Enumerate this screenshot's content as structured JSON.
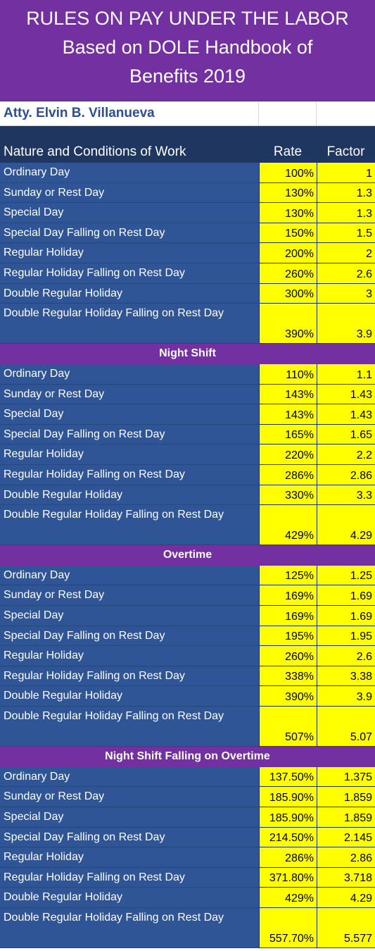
{
  "title": {
    "line1": "RULES ON PAY UNDER THE LABOR",
    "line2": "Based on DOLE Handbook of",
    "line3": "Benefits 2019"
  },
  "author": "Atty. Elvin B. Villanueva",
  "headers": {
    "nature": "Nature and Conditions of Work",
    "rate": "Rate",
    "factor": "Factor"
  },
  "colors": {
    "title_bg": "#7230a0",
    "name_bg": "#2f5596",
    "value_bg": "#ffff00",
    "header_bg": "#1f3660"
  },
  "sections": [
    {
      "heading": "",
      "rows": [
        {
          "name": "Ordinary Day",
          "rate": "100%",
          "factor": "1"
        },
        {
          "name": "Sunday or Rest Day",
          "rate": "130%",
          "factor": "1.3"
        },
        {
          "name": "Special Day",
          "rate": "130%",
          "factor": "1.3"
        },
        {
          "name": "Special Day Falling on Rest Day",
          "rate": "150%",
          "factor": "1.5"
        },
        {
          "name": "Regular Holiday",
          "rate": "200%",
          "factor": "2"
        },
        {
          "name": "Regular Holiday Falling on Rest Day",
          "rate": "260%",
          "factor": "2.6"
        },
        {
          "name": "Double Regular Holiday",
          "rate": "300%",
          "factor": "3"
        },
        {
          "name": "Double Regular Holiday Falling on Rest Day",
          "rate": "390%",
          "factor": "3.9"
        }
      ]
    },
    {
      "heading": "Night Shift",
      "rows": [
        {
          "name": "Ordinary Day",
          "rate": "110%",
          "factor": "1.1"
        },
        {
          "name": "Sunday or Rest Day",
          "rate": "143%",
          "factor": "1.43"
        },
        {
          "name": "Special Day",
          "rate": "143%",
          "factor": "1.43"
        },
        {
          "name": "Special Day Falling on Rest Day",
          "rate": "165%",
          "factor": "1.65"
        },
        {
          "name": "Regular Holiday",
          "rate": "220%",
          "factor": "2.2"
        },
        {
          "name": "Regular Holiday Falling on Rest Day",
          "rate": "286%",
          "factor": "2.86"
        },
        {
          "name": "Double Regular Holiday",
          "rate": "330%",
          "factor": "3.3"
        },
        {
          "name": "Double Regular Holiday Falling on Rest Day",
          "rate": "429%",
          "factor": "4.29"
        }
      ]
    },
    {
      "heading": "Overtime",
      "rows": [
        {
          "name": "Ordinary Day",
          "rate": "125%",
          "factor": "1.25"
        },
        {
          "name": "Sunday or Rest Day",
          "rate": "169%",
          "factor": "1.69"
        },
        {
          "name": "Special Day",
          "rate": "169%",
          "factor": "1.69"
        },
        {
          "name": "Special Day Falling on Rest Day",
          "rate": "195%",
          "factor": "1.95"
        },
        {
          "name": "Regular Holiday",
          "rate": "260%",
          "factor": "2.6"
        },
        {
          "name": "Regular Holiday Falling on Rest Day",
          "rate": "338%",
          "factor": "3.38"
        },
        {
          "name": "Double Regular Holiday",
          "rate": "390%",
          "factor": "3.9"
        },
        {
          "name": "Double Regular Holiday Falling on Rest Day",
          "rate": "507%",
          "factor": "5.07"
        }
      ]
    },
    {
      "heading": "Night Shift Falling on Overtime",
      "rows": [
        {
          "name": "Ordinary Day",
          "rate": "137.50%",
          "factor": "1.375"
        },
        {
          "name": "Sunday or Rest Day",
          "rate": "185.90%",
          "factor": "1.859"
        },
        {
          "name": "Special Day",
          "rate": "185.90%",
          "factor": "1.859"
        },
        {
          "name": "Special Day Falling on Rest Day",
          "rate": "214.50%",
          "factor": "2.145"
        },
        {
          "name": "Regular Holiday",
          "rate": "286%",
          "factor": "2.86"
        },
        {
          "name": "Regular Holiday Falling on Rest Day",
          "rate": "371.80%",
          "factor": "3.718"
        },
        {
          "name": "Double Regular Holiday",
          "rate": "429%",
          "factor": "4.29"
        },
        {
          "name": "Double Regular Holiday Falling on Rest Day",
          "rate": "557.70%",
          "factor": "5.577"
        }
      ]
    }
  ]
}
